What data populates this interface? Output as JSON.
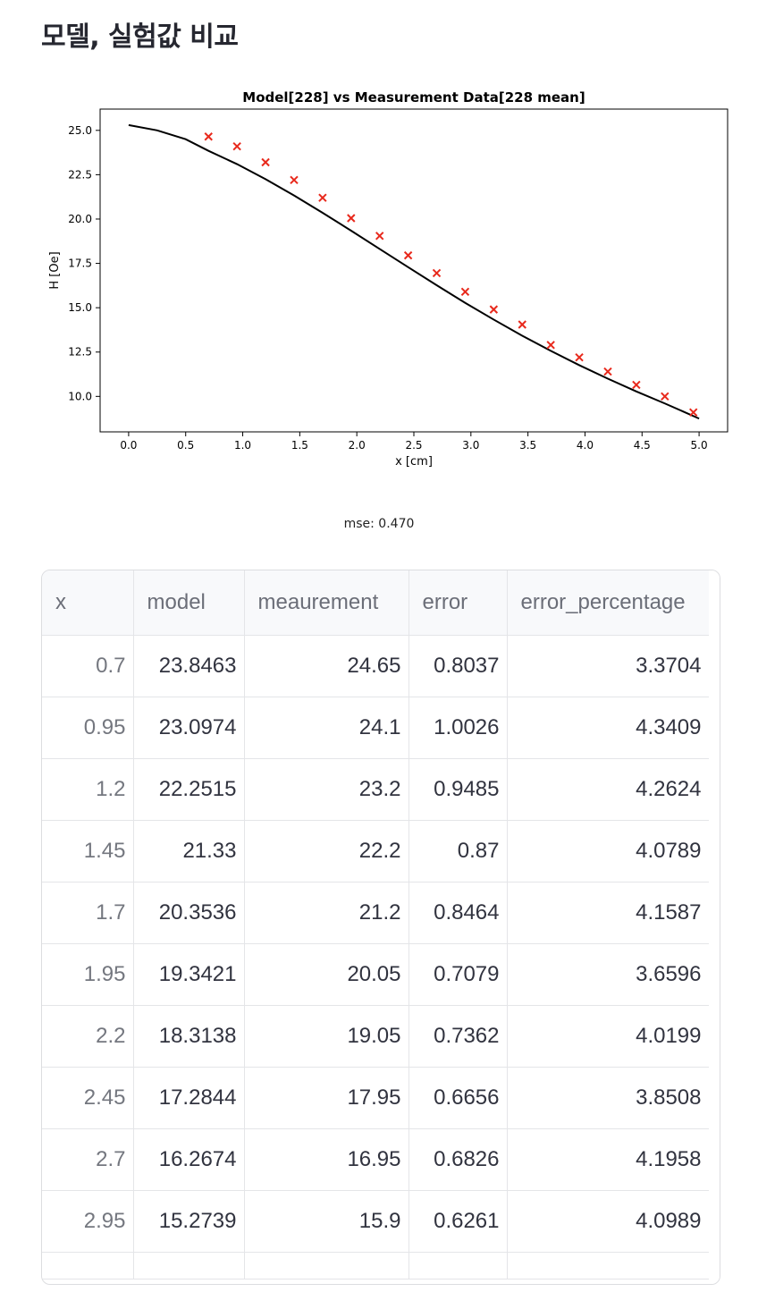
{
  "page": {
    "title": "모델, 실험값 비교"
  },
  "chart_data": {
    "type": "line",
    "title": "Model[228] vs Measurement Data[228 mean]",
    "xlabel": "x [cm]",
    "ylabel": "H [Oe]",
    "xlim": [
      -0.25,
      5.25
    ],
    "ylim": [
      8.0,
      26.2
    ],
    "x_ticks": [
      "0.0",
      "0.5",
      "1.0",
      "1.5",
      "2.0",
      "2.5",
      "3.0",
      "3.5",
      "4.0",
      "4.5",
      "5.0"
    ],
    "x_tick_values": [
      0,
      0.5,
      1,
      1.5,
      2,
      2.5,
      3,
      3.5,
      4,
      4.5,
      5
    ],
    "y_ticks": [
      "10.0",
      "12.5",
      "15.0",
      "17.5",
      "20.0",
      "22.5",
      "25.0"
    ],
    "y_tick_values": [
      10,
      12.5,
      15,
      17.5,
      20,
      22.5,
      25
    ],
    "grid": false,
    "series": [
      {
        "type": "line",
        "color": "#000000",
        "x": [
          0,
          0.25,
          0.5,
          0.7,
          0.95,
          1.2,
          1.45,
          1.7,
          1.95,
          2.2,
          2.45,
          2.7,
          2.95,
          3.2,
          3.45,
          3.7,
          3.95,
          4.2,
          4.45,
          4.7,
          5.0
        ],
        "y": [
          25.3,
          25.0,
          24.5,
          23.8463,
          23.0974,
          22.2515,
          21.33,
          20.3536,
          19.3421,
          18.3138,
          17.2844,
          16.2674,
          15.2739,
          14.33,
          13.42,
          12.57,
          11.76,
          11.0,
          10.28,
          9.6,
          8.75
        ]
      },
      {
        "type": "scatter",
        "marker": "x",
        "color": "#e8291c",
        "x": [
          0.7,
          0.95,
          1.2,
          1.45,
          1.7,
          1.95,
          2.2,
          2.45,
          2.7,
          2.95,
          3.2,
          3.45,
          3.7,
          3.95,
          4.2,
          4.45,
          4.7,
          4.95
        ],
        "y": [
          24.65,
          24.1,
          23.2,
          22.2,
          21.2,
          20.05,
          19.05,
          17.95,
          16.95,
          15.9,
          14.9,
          14.05,
          12.9,
          12.2,
          11.4,
          10.65,
          10.0,
          9.1
        ]
      }
    ]
  },
  "mse": "mse: 0.470",
  "table": {
    "columns": [
      "x",
      "model",
      "meaurement",
      "error",
      "error_percentage"
    ],
    "rows": [
      [
        "0.7",
        "23.8463",
        "24.65",
        "0.8037",
        "3.3704"
      ],
      [
        "0.95",
        "23.0974",
        "24.1",
        "1.0026",
        "4.3409"
      ],
      [
        "1.2",
        "22.2515",
        "23.2",
        "0.9485",
        "4.2624"
      ],
      [
        "1.45",
        "21.33",
        "22.2",
        "0.87",
        "4.0789"
      ],
      [
        "1.7",
        "20.3536",
        "21.2",
        "0.8464",
        "4.1587"
      ],
      [
        "1.95",
        "19.3421",
        "20.05",
        "0.7079",
        "3.6596"
      ],
      [
        "2.2",
        "18.3138",
        "19.05",
        "0.7362",
        "4.0199"
      ],
      [
        "2.45",
        "17.2844",
        "17.95",
        "0.6656",
        "3.8508"
      ],
      [
        "2.7",
        "16.2674",
        "16.95",
        "0.6826",
        "4.1958"
      ],
      [
        "2.95",
        "15.2739",
        "15.9",
        "0.6261",
        "4.0989"
      ]
    ]
  }
}
